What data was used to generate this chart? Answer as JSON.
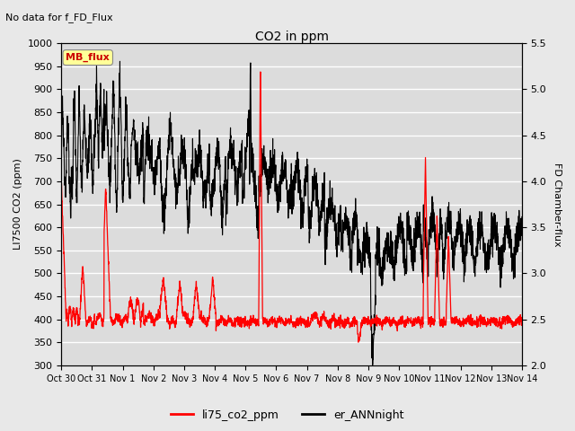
{
  "title": "CO2 in ppm",
  "top_left_text": "No data for f_FD_Flux",
  "ylabel_left": "LI7500 CO2 (ppm)",
  "ylabel_right": "FD Chamber-flux",
  "ylim_left": [
    300,
    1000
  ],
  "ylim_right": [
    2.0,
    5.5
  ],
  "yticks_left": [
    300,
    350,
    400,
    450,
    500,
    550,
    600,
    650,
    700,
    750,
    800,
    850,
    900,
    950,
    1000
  ],
  "yticks_right": [
    2.0,
    2.5,
    3.0,
    3.5,
    4.0,
    4.5,
    5.0,
    5.5
  ],
  "xtick_labels": [
    "Oct 30",
    "Oct 31",
    "Nov 1",
    "Nov 2",
    "Nov 3",
    "Nov 4",
    "Nov 5",
    "Nov 6",
    "Nov 7",
    "Nov 8",
    "Nov 9",
    "Nov 10",
    "Nov 11",
    "Nov 12",
    "Nov 13",
    "Nov 14"
  ],
  "legend_label_red": "li75_co2_ppm",
  "legend_label_black": "er_ANNnight",
  "mb_flux_label": "MB_flux",
  "line_color_red": "#ff0000",
  "line_color_black": "#000000",
  "background_color": "#e8e8e8",
  "plot_bg_color": "#dcdcdc",
  "grid_color": "#ffffff",
  "mb_box_color": "#ffff99",
  "mb_text_color": "#cc0000"
}
